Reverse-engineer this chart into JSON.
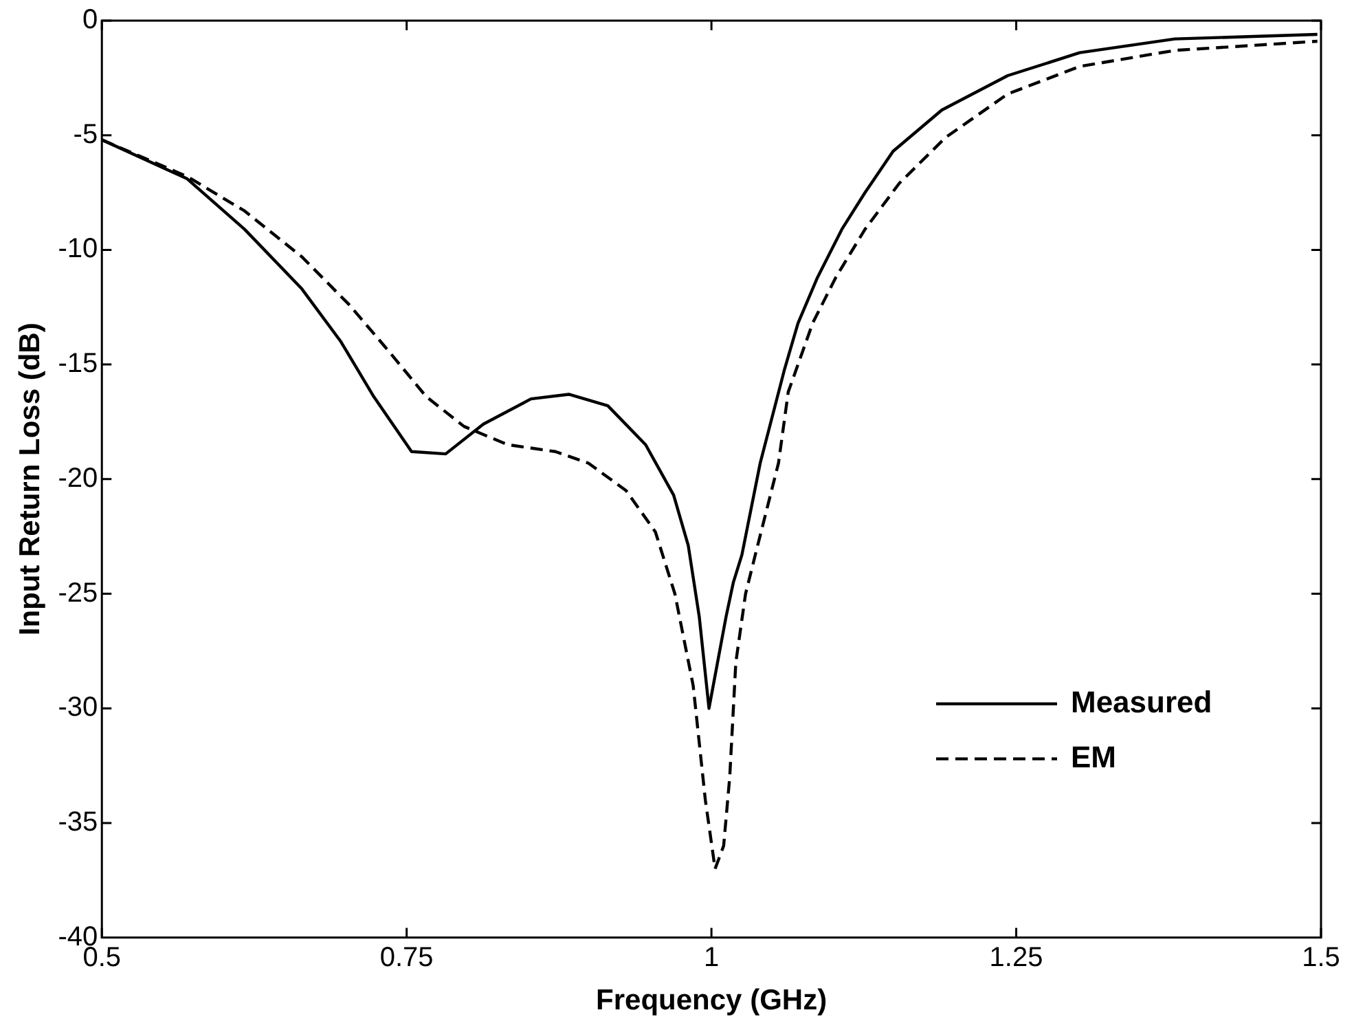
{
  "chart_data": {
    "type": "line",
    "xlabel": "Frequency (GHz)",
    "ylabel": "Input Return Loss (dB)",
    "xlim": [
      0.5,
      1.5
    ],
    "xticks": [
      0.5,
      0.75,
      1,
      1.25,
      1.5
    ],
    "ylim": [
      -40,
      0
    ],
    "yticks": [
      -40,
      -35,
      -30,
      -25,
      -20,
      -15,
      -10,
      -5,
      0
    ],
    "grid": false,
    "legend": "bottom right",
    "marker": "none",
    "series": [
      {
        "name": "Measured",
        "color": "#000000",
        "line_style": "solid",
        "x": [
          0.5,
          0.57,
          0.617,
          0.664,
          0.696,
          0.723,
          0.754,
          0.782,
          0.813,
          0.852,
          0.883,
          0.915,
          0.946,
          0.969,
          0.981,
          0.99,
          0.998,
          1.005,
          1.012,
          1.018,
          1.025,
          1.04,
          1.06,
          1.071,
          1.087,
          1.107,
          1.126,
          1.149,
          1.189,
          1.243,
          1.302,
          1.38,
          1.497
        ],
        "values": [
          -5.2,
          -6.9,
          -9.1,
          -11.7,
          -14,
          -16.4,
          -18.8,
          -18.9,
          -17.6,
          -16.5,
          -16.3,
          -16.8,
          -18.5,
          -20.7,
          -22.9,
          -26,
          -30,
          -28,
          -26,
          -24.5,
          -23.3,
          -19.3,
          -15.2,
          -13.2,
          -11.2,
          -9.1,
          -7.5,
          -5.7,
          -3.9,
          -2.4,
          -1.4,
          -0.8,
          -0.6
        ]
      },
      {
        "name": "EM",
        "color": "#000000",
        "line_style": "dashed",
        "x": [
          0.5,
          0.57,
          0.617,
          0.664,
          0.703,
          0.735,
          0.766,
          0.797,
          0.833,
          0.872,
          0.899,
          0.93,
          0.954,
          0.97,
          0.985,
          0.995,
          1.003,
          1.01,
          1.015,
          1.02,
          1.028,
          1.036,
          1.055,
          1.063,
          1.083,
          1.102,
          1.126,
          1.154,
          1.192,
          1.243,
          1.302,
          1.38,
          1.497
        ],
        "values": [
          -5.2,
          -6.8,
          -8.3,
          -10.3,
          -12.4,
          -14.4,
          -16.4,
          -17.7,
          -18.5,
          -18.8,
          -19.3,
          -20.5,
          -22.3,
          -25,
          -29,
          -34,
          -37,
          -36,
          -33,
          -28,
          -25,
          -23.3,
          -19.3,
          -16.2,
          -13.2,
          -11.2,
          -9.1,
          -7.1,
          -5.1,
          -3.2,
          -2,
          -1.3,
          -0.9
        ]
      }
    ]
  }
}
